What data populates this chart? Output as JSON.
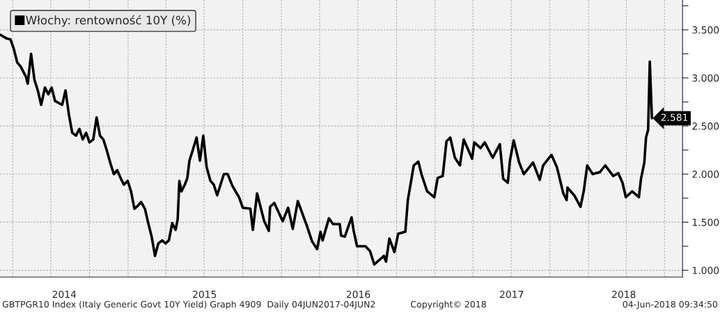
{
  "chart_data": {
    "type": "line",
    "series": [
      {
        "name": "Włochy: rentowność 10Y (%)",
        "color": "#000000",
        "x": [
          "2014-03-02",
          "2014-03-18",
          "2014-03-27",
          "2014-04-04",
          "2014-04-12",
          "2014-04-20",
          "2014-05-03",
          "2014-05-07",
          "2014-05-15",
          "2014-05-23",
          "2014-05-31",
          "2014-06-08",
          "2014-06-17",
          "2014-06-25",
          "2014-07-03",
          "2014-07-11",
          "2014-07-28",
          "2014-08-05",
          "2014-08-13",
          "2014-08-21",
          "2014-08-30",
          "2014-09-07",
          "2014-09-15",
          "2014-09-23",
          "2014-10-01",
          "2014-10-10",
          "2014-10-18",
          "2014-10-26",
          "2014-11-03",
          "2014-11-11",
          "2014-11-20",
          "2014-11-28",
          "2014-12-06",
          "2014-12-14",
          "2014-12-22",
          "2014-12-31",
          "2015-01-08",
          "2015-01-16",
          "2015-01-24",
          "2015-02-01",
          "2015-02-10",
          "2015-02-18",
          "2015-02-26",
          "2015-03-06",
          "2015-03-14",
          "2015-03-23",
          "2015-03-31",
          "2015-04-08",
          "2015-04-16",
          "2015-04-24",
          "2015-04-29",
          "2015-05-03",
          "2015-05-08",
          "2015-05-16",
          "2015-05-22",
          "2015-05-27",
          "2015-06-04",
          "2015-06-13",
          "2015-06-21",
          "2015-06-29",
          "2015-07-07",
          "2015-07-16",
          "2015-07-24",
          "2015-08-01",
          "2015-08-09",
          "2015-08-17",
          "2015-08-26",
          "2015-09-06",
          "2015-09-22",
          "2015-10-01",
          "2015-10-19",
          "2015-10-25",
          "2015-11-04",
          "2015-11-21",
          "2015-12-02",
          "2015-12-05",
          "2015-12-15",
          "2016-01-04",
          "2016-01-17",
          "2016-01-28",
          "2016-02-09",
          "2016-03-01",
          "2016-03-14",
          "2016-03-26",
          "2016-04-03",
          "2016-04-08",
          "2016-04-23",
          "2016-05-03",
          "2016-05-19",
          "2016-05-22",
          "2016-05-31",
          "2016-06-16",
          "2016-06-21",
          "2016-06-29",
          "2016-07-19",
          "2016-07-30",
          "2016-08-09",
          "2016-09-01",
          "2016-09-06",
          "2016-09-14",
          "2016-09-26",
          "2016-10-05",
          "2016-10-22",
          "2016-10-28",
          "2016-11-11",
          "2016-11-22",
          "2016-11-30",
          "2016-12-13",
          "2016-12-30",
          "2017-01-07",
          "2017-01-19",
          "2017-01-28",
          "2017-02-06",
          "2017-02-17",
          "2017-03-01",
          "2017-03-10",
          "2017-03-30",
          "2017-04-04",
          "2017-04-19",
          "2017-04-29",
          "2017-05-18",
          "2017-06-04",
          "2017-06-12",
          "2017-06-23",
          "2017-06-28",
          "2017-07-07",
          "2017-07-20",
          "2017-07-31",
          "2017-08-22",
          "2017-09-07",
          "2017-09-15",
          "2017-10-05",
          "2017-10-18",
          "2017-11-02",
          "2017-11-10",
          "2017-11-12",
          "2017-11-28",
          "2017-12-13",
          "2017-12-21",
          "2017-12-29",
          "2018-01-11",
          "2018-01-28",
          "2018-02-10",
          "2018-03-01",
          "2018-03-13",
          "2018-03-23",
          "2018-03-31",
          "2018-04-15",
          "2018-05-01",
          "2018-05-06",
          "2018-05-14",
          "2018-05-18",
          "2018-05-23",
          "2018-05-27",
          "2018-06-01"
        ],
        "values": [
          3.45,
          3.41,
          3.4,
          3.3,
          3.16,
          3.12,
          3.01,
          2.94,
          3.25,
          2.98,
          2.87,
          2.72,
          2.9,
          2.83,
          2.9,
          2.76,
          2.72,
          2.87,
          2.62,
          2.43,
          2.4,
          2.47,
          2.36,
          2.43,
          2.33,
          2.36,
          2.59,
          2.4,
          2.36,
          2.25,
          2.11,
          2.0,
          2.04,
          1.96,
          1.89,
          1.93,
          1.82,
          1.64,
          1.67,
          1.71,
          1.64,
          1.49,
          1.35,
          1.15,
          1.28,
          1.31,
          1.28,
          1.31,
          1.49,
          1.42,
          1.53,
          1.93,
          1.82,
          1.89,
          1.96,
          2.14,
          2.25,
          2.38,
          2.14,
          2.4,
          2.07,
          1.93,
          1.89,
          1.78,
          1.89,
          2.0,
          2.0,
          1.88,
          1.76,
          1.65,
          1.64,
          1.42,
          1.8,
          1.51,
          1.41,
          1.66,
          1.7,
          1.51,
          1.65,
          1.43,
          1.72,
          1.47,
          1.3,
          1.22,
          1.4,
          1.31,
          1.54,
          1.48,
          1.48,
          1.36,
          1.35,
          1.55,
          1.41,
          1.25,
          1.25,
          1.2,
          1.06,
          1.15,
          1.09,
          1.33,
          1.19,
          1.38,
          1.4,
          1.73,
          2.09,
          2.13,
          1.99,
          1.82,
          1.76,
          1.96,
          1.98,
          2.34,
          2.38,
          2.17,
          2.09,
          2.36,
          2.16,
          2.33,
          2.27,
          2.33,
          2.17,
          2.31,
          1.95,
          1.91,
          2.14,
          2.35,
          2.12,
          2.0,
          2.12,
          1.94,
          2.09,
          2.2,
          2.07,
          1.8,
          1.73,
          1.86,
          1.78,
          1.66,
          1.83,
          2.09,
          2.0,
          2.02,
          2.09,
          1.98,
          2.01,
          1.91,
          1.76,
          1.82,
          1.76,
          1.95,
          2.12,
          2.38,
          2.46,
          3.17,
          2.581
        ]
      }
    ],
    "xlim": [
      "2014-03-02",
      "2018-08-13"
    ],
    "xticks": [
      {
        "value": "2014-04-01",
        "label": null
      },
      {
        "value": "2014-07-01",
        "label": null
      },
      {
        "value": "2014-10-01",
        "label": null
      },
      {
        "value": "2015-01-01",
        "label": null
      },
      {
        "value": "2015-04-01",
        "label": null
      },
      {
        "value": "2015-07-01",
        "label": null
      },
      {
        "value": "2015-10-01",
        "label": null
      },
      {
        "value": "2016-01-01",
        "label": null
      },
      {
        "value": "2016-04-01",
        "label": null
      },
      {
        "value": "2016-07-01",
        "label": null
      },
      {
        "value": "2016-10-01",
        "label": null
      },
      {
        "value": "2017-01-01",
        "label": null
      },
      {
        "value": "2017-04-01",
        "label": null
      },
      {
        "value": "2017-07-01",
        "label": null
      },
      {
        "value": "2017-10-01",
        "label": null
      },
      {
        "value": "2018-01-01",
        "label": null
      },
      {
        "value": "2018-04-01",
        "label": null
      },
      {
        "value": "2018-07-01",
        "label": null
      },
      {
        "value": "2014-08-02",
        "label": "2014"
      },
      {
        "value": "2015-07-02",
        "label": "2015"
      },
      {
        "value": "2016-07-02",
        "label": "2016"
      },
      {
        "value": "2017-07-02",
        "label": "2017"
      },
      {
        "value": "2018-03-26",
        "label": "2018"
      }
    ],
    "ylim": [
      0.93,
      3.81
    ],
    "yticks": [
      {
        "value": 1.0,
        "label": "1.000"
      },
      {
        "value": 1.25,
        "label": null
      },
      {
        "value": 1.5,
        "label": "1.500"
      },
      {
        "value": 1.75,
        "label": null
      },
      {
        "value": 2.0,
        "label": "2.000"
      },
      {
        "value": 2.25,
        "label": null
      },
      {
        "value": 2.5,
        "label": "2.500"
      },
      {
        "value": 2.75,
        "label": null
      },
      {
        "value": 3.0,
        "label": "3.000"
      },
      {
        "value": 3.25,
        "label": null
      },
      {
        "value": 3.5,
        "label": "3.500"
      },
      {
        "value": 3.75,
        "label": null
      }
    ],
    "grid": true,
    "legend": "top left",
    "line_style": "solid",
    "marker": "none",
    "annotations": [
      {
        "text": "2.581",
        "x": "2018-06-01",
        "y": 2.581
      },
      "GBTPGR10 Index (Italy Generic Govt 10Y Yield) Graph 4909  Daily 04JUN2017-04JUN2",
      "Copyright© 2018",
      "04-Jun-2018 09:34:50"
    ]
  }
}
